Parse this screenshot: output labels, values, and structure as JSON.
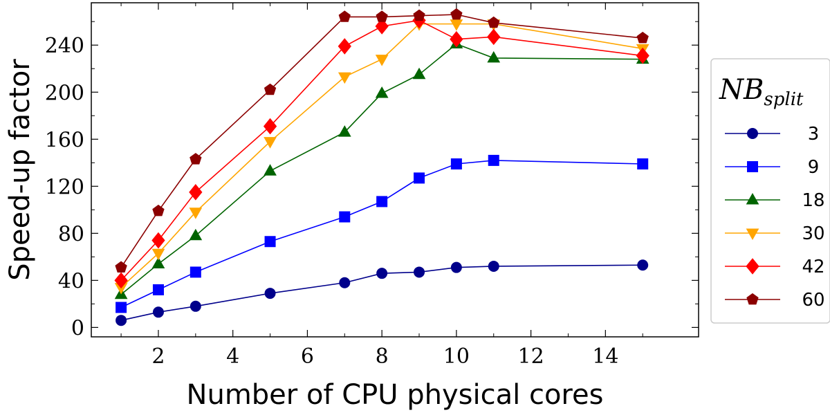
{
  "chart_data": {
    "type": "line",
    "xlabel": "Number of CPU physical cores",
    "ylabel": "Speed-up factor",
    "xlim": [
      0.2,
      16.5
    ],
    "ylim": [
      -8,
      276
    ],
    "xticks": [
      2,
      4,
      6,
      8,
      10,
      12,
      14
    ],
    "yticks": [
      0,
      40,
      80,
      120,
      160,
      200,
      240
    ],
    "grid": false,
    "legend": {
      "placement": "right-outside",
      "title_main": "NB",
      "title_sub": "split"
    },
    "x": [
      1,
      2,
      3,
      5,
      7,
      8,
      9,
      10,
      11,
      15
    ],
    "series": [
      {
        "name": "3",
        "color": "#00008b",
        "marker": "circle",
        "values": [
          6,
          13,
          18,
          29,
          38,
          46,
          47,
          51,
          52,
          53
        ]
      },
      {
        "name": "9",
        "color": "#0000ff",
        "marker": "square",
        "values": [
          17,
          32,
          47,
          73,
          94,
          107,
          127,
          139,
          142,
          139
        ]
      },
      {
        "name": "18",
        "color": "#006400",
        "marker": "triangle-up",
        "values": [
          28,
          54,
          78,
          133,
          166,
          199,
          215,
          241,
          229,
          228
        ]
      },
      {
        "name": "30",
        "color": "#ffa500",
        "marker": "triangle-down",
        "values": [
          34,
          63,
          98,
          158,
          213,
          228,
          258,
          258,
          258,
          237
        ]
      },
      {
        "name": "42",
        "color": "#ff0000",
        "marker": "diamond",
        "values": [
          40,
          74,
          115,
          171,
          239,
          256,
          261,
          245,
          247,
          231
        ]
      },
      {
        "name": "60",
        "color": "#8b0000",
        "marker": "pentagon",
        "values": [
          51,
          99,
          143,
          202,
          264,
          264,
          265,
          266,
          259,
          246
        ]
      }
    ]
  }
}
